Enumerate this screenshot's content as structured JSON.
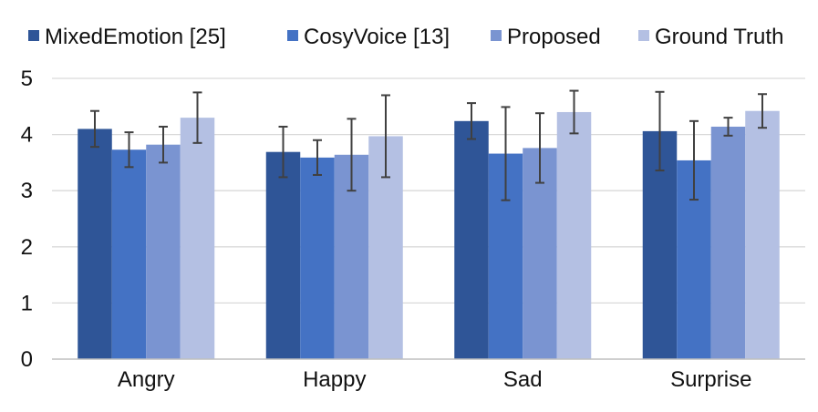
{
  "chart_data": {
    "type": "bar",
    "title": "",
    "xlabel": "",
    "ylabel": "",
    "ylim": [
      0,
      5
    ],
    "yticks": [
      "0",
      "1",
      "2",
      "3",
      "4",
      "5"
    ],
    "grid": true,
    "legend_position": "top",
    "categories": [
      "Angry",
      "Happy",
      "Sad",
      "Surprise"
    ],
    "series": [
      {
        "name": "MixedEmotion [25]",
        "color": "#2f5597",
        "values": [
          4.1,
          3.69,
          4.24,
          4.06
        ],
        "errors": [
          0.32,
          0.45,
          0.32,
          0.7
        ]
      },
      {
        "name": "CosyVoice [13]",
        "color": "#4472c4",
        "values": [
          3.73,
          3.59,
          3.66,
          3.54
        ],
        "errors": [
          0.31,
          0.31,
          0.83,
          0.7
        ]
      },
      {
        "name": "Proposed",
        "color": "#7a94d1",
        "values": [
          3.82,
          3.64,
          3.76,
          4.14
        ],
        "errors": [
          0.32,
          0.64,
          0.62,
          0.16
        ]
      },
      {
        "name": "Ground Truth",
        "color": "#b4c0e3",
        "values": [
          4.3,
          3.97,
          4.4,
          4.42
        ],
        "errors": [
          0.45,
          0.73,
          0.38,
          0.3
        ]
      }
    ]
  }
}
